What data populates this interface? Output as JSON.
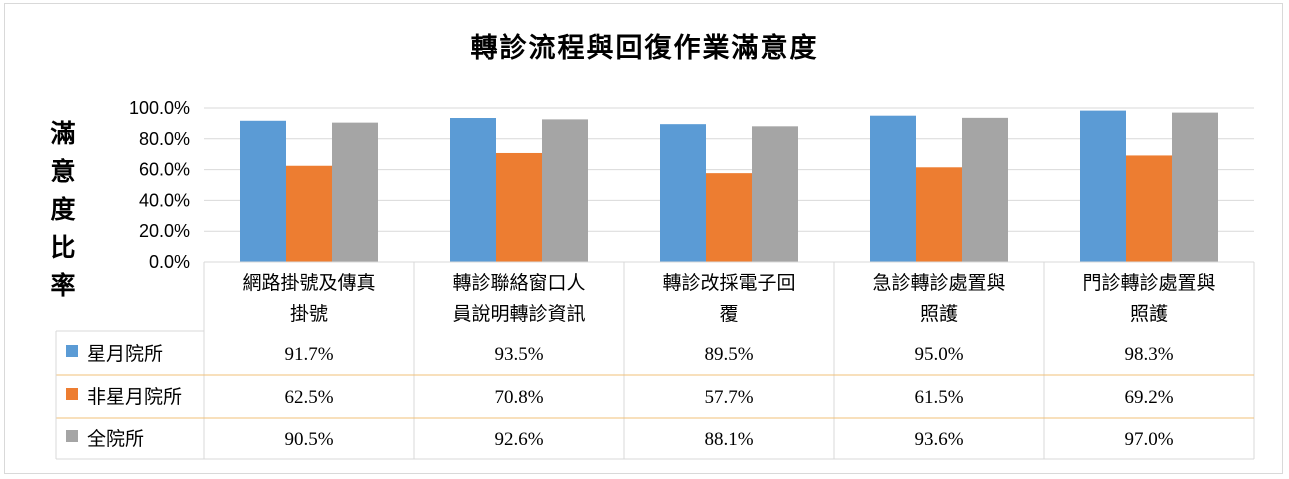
{
  "chart_data": {
    "type": "bar",
    "title": "轉診流程與回復作業滿意度",
    "ylabel": "滿意度比率",
    "xlabel": "",
    "ylim": [
      0,
      100
    ],
    "yticks": [
      "0.0%",
      "20.0%",
      "40.0%",
      "60.0%",
      "80.0%",
      "100.0%"
    ],
    "categories": [
      [
        "網路掛號及傳真",
        "掛號"
      ],
      [
        "轉診聯絡窗口人",
        "員說明轉診資訊"
      ],
      [
        "轉診改採電子回",
        "覆"
      ],
      [
        "急診轉診處置與",
        "照護"
      ],
      [
        "門診轉診處置與",
        "照護"
      ]
    ],
    "series": [
      {
        "name": "星月院所",
        "color": "#5b9bd5",
        "values": [
          91.7,
          93.5,
          89.5,
          95.0,
          98.3
        ],
        "labels": [
          "91.7%",
          "93.5%",
          "89.5%",
          "95.0%",
          "98.3%"
        ]
      },
      {
        "name": "非星月院所",
        "color": "#ed7d31",
        "values": [
          62.5,
          70.8,
          57.7,
          61.5,
          69.2
        ],
        "labels": [
          "62.5%",
          "70.8%",
          "57.7%",
          "61.5%",
          "69.2%"
        ]
      },
      {
        "name": "全院所",
        "color": "#a5a5a5",
        "values": [
          90.5,
          92.6,
          88.1,
          93.6,
          97.0
        ],
        "labels": [
          "90.5%",
          "92.6%",
          "88.1%",
          "93.6%",
          "97.0%"
        ]
      }
    ],
    "grid": true,
    "legend": "data-table"
  }
}
